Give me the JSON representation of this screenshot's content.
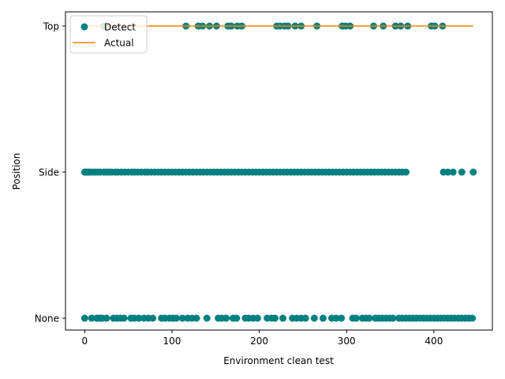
{
  "chart_data": {
    "type": "scatter",
    "xlabel": "Environment clean test",
    "ylabel": "Position",
    "xlim": [
      -22,
      467
    ],
    "x_ticks": [
      0,
      100,
      200,
      300,
      400
    ],
    "y_categories": [
      "None",
      "Side",
      "Top"
    ],
    "legend_position": "upper-left",
    "grid": false,
    "series": [
      {
        "name": "Detect",
        "kind": "scatter",
        "color": "#008080",
        "points": [
          {
            "x": 22,
            "y": "Top"
          },
          {
            "x": 116,
            "y": "Top"
          },
          {
            "x": 130,
            "y": "Top"
          },
          {
            "x": 135,
            "y": "Top"
          },
          {
            "x": 143,
            "y": "Top"
          },
          {
            "x": 151,
            "y": "Top"
          },
          {
            "x": 164,
            "y": "Top"
          },
          {
            "x": 168,
            "y": "Top"
          },
          {
            "x": 175,
            "y": "Top"
          },
          {
            "x": 180,
            "y": "Top"
          },
          {
            "x": 220,
            "y": "Top"
          },
          {
            "x": 224,
            "y": "Top"
          },
          {
            "x": 229,
            "y": "Top"
          },
          {
            "x": 233,
            "y": "Top"
          },
          {
            "x": 241,
            "y": "Top"
          },
          {
            "x": 248,
            "y": "Top"
          },
          {
            "x": 266,
            "y": "Top"
          },
          {
            "x": 295,
            "y": "Top"
          },
          {
            "x": 299,
            "y": "Top"
          },
          {
            "x": 304,
            "y": "Top"
          },
          {
            "x": 331,
            "y": "Top"
          },
          {
            "x": 342,
            "y": "Top"
          },
          {
            "x": 356,
            "y": "Top"
          },
          {
            "x": 362,
            "y": "Top"
          },
          {
            "x": 370,
            "y": "Top"
          },
          {
            "x": 397,
            "y": "Top"
          },
          {
            "x": 401,
            "y": "Top"
          },
          {
            "x": 410,
            "y": "Top"
          },
          {
            "x": 0,
            "y": "Side"
          },
          {
            "x": 2,
            "y": "Side"
          },
          {
            "x": 4,
            "y": "Side"
          },
          {
            "x": 6,
            "y": "Side"
          },
          {
            "x": 9,
            "y": "Side"
          },
          {
            "x": 12,
            "y": "Side"
          },
          {
            "x": 15,
            "y": "Side"
          },
          {
            "x": 18,
            "y": "Side"
          },
          {
            "x": 22,
            "y": "Side"
          },
          {
            "x": 25,
            "y": "Side"
          },
          {
            "x": 28,
            "y": "Side"
          },
          {
            "x": 31,
            "y": "Side"
          },
          {
            "x": 35,
            "y": "Side"
          },
          {
            "x": 38,
            "y": "Side"
          },
          {
            "x": 42,
            "y": "Side"
          },
          {
            "x": 46,
            "y": "Side"
          },
          {
            "x": 50,
            "y": "Side"
          },
          {
            "x": 54,
            "y": "Side"
          },
          {
            "x": 57,
            "y": "Side"
          },
          {
            "x": 61,
            "y": "Side"
          },
          {
            "x": 65,
            "y": "Side"
          },
          {
            "x": 69,
            "y": "Side"
          },
          {
            "x": 72,
            "y": "Side"
          },
          {
            "x": 76,
            "y": "Side"
          },
          {
            "x": 80,
            "y": "Side"
          },
          {
            "x": 84,
            "y": "Side"
          },
          {
            "x": 88,
            "y": "Side"
          },
          {
            "x": 92,
            "y": "Side"
          },
          {
            "x": 96,
            "y": "Side"
          },
          {
            "x": 100,
            "y": "Side"
          },
          {
            "x": 104,
            "y": "Side"
          },
          {
            "x": 108,
            "y": "Side"
          },
          {
            "x": 112,
            "y": "Side"
          },
          {
            "x": 116,
            "y": "Side"
          },
          {
            "x": 120,
            "y": "Side"
          },
          {
            "x": 124,
            "y": "Side"
          },
          {
            "x": 128,
            "y": "Side"
          },
          {
            "x": 132,
            "y": "Side"
          },
          {
            "x": 136,
            "y": "Side"
          },
          {
            "x": 140,
            "y": "Side"
          },
          {
            "x": 144,
            "y": "Side"
          },
          {
            "x": 148,
            "y": "Side"
          },
          {
            "x": 152,
            "y": "Side"
          },
          {
            "x": 156,
            "y": "Side"
          },
          {
            "x": 160,
            "y": "Side"
          },
          {
            "x": 164,
            "y": "Side"
          },
          {
            "x": 168,
            "y": "Side"
          },
          {
            "x": 172,
            "y": "Side"
          },
          {
            "x": 176,
            "y": "Side"
          },
          {
            "x": 180,
            "y": "Side"
          },
          {
            "x": 184,
            "y": "Side"
          },
          {
            "x": 188,
            "y": "Side"
          },
          {
            "x": 192,
            "y": "Side"
          },
          {
            "x": 196,
            "y": "Side"
          },
          {
            "x": 200,
            "y": "Side"
          },
          {
            "x": 204,
            "y": "Side"
          },
          {
            "x": 208,
            "y": "Side"
          },
          {
            "x": 212,
            "y": "Side"
          },
          {
            "x": 216,
            "y": "Side"
          },
          {
            "x": 220,
            "y": "Side"
          },
          {
            "x": 224,
            "y": "Side"
          },
          {
            "x": 228,
            "y": "Side"
          },
          {
            "x": 232,
            "y": "Side"
          },
          {
            "x": 236,
            "y": "Side"
          },
          {
            "x": 240,
            "y": "Side"
          },
          {
            "x": 244,
            "y": "Side"
          },
          {
            "x": 248,
            "y": "Side"
          },
          {
            "x": 252,
            "y": "Side"
          },
          {
            "x": 256,
            "y": "Side"
          },
          {
            "x": 260,
            "y": "Side"
          },
          {
            "x": 264,
            "y": "Side"
          },
          {
            "x": 268,
            "y": "Side"
          },
          {
            "x": 272,
            "y": "Side"
          },
          {
            "x": 276,
            "y": "Side"
          },
          {
            "x": 280,
            "y": "Side"
          },
          {
            "x": 284,
            "y": "Side"
          },
          {
            "x": 288,
            "y": "Side"
          },
          {
            "x": 292,
            "y": "Side"
          },
          {
            "x": 296,
            "y": "Side"
          },
          {
            "x": 300,
            "y": "Side"
          },
          {
            "x": 304,
            "y": "Side"
          },
          {
            "x": 308,
            "y": "Side"
          },
          {
            "x": 312,
            "y": "Side"
          },
          {
            "x": 316,
            "y": "Side"
          },
          {
            "x": 320,
            "y": "Side"
          },
          {
            "x": 324,
            "y": "Side"
          },
          {
            "x": 328,
            "y": "Side"
          },
          {
            "x": 332,
            "y": "Side"
          },
          {
            "x": 336,
            "y": "Side"
          },
          {
            "x": 340,
            "y": "Side"
          },
          {
            "x": 344,
            "y": "Side"
          },
          {
            "x": 348,
            "y": "Side"
          },
          {
            "x": 352,
            "y": "Side"
          },
          {
            "x": 356,
            "y": "Side"
          },
          {
            "x": 360,
            "y": "Side"
          },
          {
            "x": 364,
            "y": "Side"
          },
          {
            "x": 368,
            "y": "Side"
          },
          {
            "x": 411,
            "y": "Side"
          },
          {
            "x": 416,
            "y": "Side"
          },
          {
            "x": 422,
            "y": "Side"
          },
          {
            "x": 432,
            "y": "Side"
          },
          {
            "x": 445,
            "y": "Side"
          },
          {
            "x": 0,
            "y": "None"
          },
          {
            "x": 8,
            "y": "None"
          },
          {
            "x": 14,
            "y": "None"
          },
          {
            "x": 17,
            "y": "None"
          },
          {
            "x": 20,
            "y": "None"
          },
          {
            "x": 25,
            "y": "None"
          },
          {
            "x": 33,
            "y": "None"
          },
          {
            "x": 37,
            "y": "None"
          },
          {
            "x": 41,
            "y": "None"
          },
          {
            "x": 45,
            "y": "None"
          },
          {
            "x": 53,
            "y": "None"
          },
          {
            "x": 57,
            "y": "None"
          },
          {
            "x": 62,
            "y": "None"
          },
          {
            "x": 68,
            "y": "None"
          },
          {
            "x": 73,
            "y": "None"
          },
          {
            "x": 78,
            "y": "None"
          },
          {
            "x": 88,
            "y": "None"
          },
          {
            "x": 92,
            "y": "None"
          },
          {
            "x": 97,
            "y": "None"
          },
          {
            "x": 101,
            "y": "None"
          },
          {
            "x": 105,
            "y": "None"
          },
          {
            "x": 112,
            "y": "None"
          },
          {
            "x": 118,
            "y": "None"
          },
          {
            "x": 123,
            "y": "None"
          },
          {
            "x": 128,
            "y": "None"
          },
          {
            "x": 140,
            "y": "None"
          },
          {
            "x": 153,
            "y": "None"
          },
          {
            "x": 157,
            "y": "None"
          },
          {
            "x": 162,
            "y": "None"
          },
          {
            "x": 170,
            "y": "None"
          },
          {
            "x": 174,
            "y": "None"
          },
          {
            "x": 184,
            "y": "None"
          },
          {
            "x": 188,
            "y": "None"
          },
          {
            "x": 193,
            "y": "None"
          },
          {
            "x": 198,
            "y": "None"
          },
          {
            "x": 209,
            "y": "None"
          },
          {
            "x": 214,
            "y": "None"
          },
          {
            "x": 218,
            "y": "None"
          },
          {
            "x": 227,
            "y": "None"
          },
          {
            "x": 238,
            "y": "None"
          },
          {
            "x": 243,
            "y": "None"
          },
          {
            "x": 248,
            "y": "None"
          },
          {
            "x": 253,
            "y": "None"
          },
          {
            "x": 263,
            "y": "None"
          },
          {
            "x": 273,
            "y": "None"
          },
          {
            "x": 283,
            "y": "None"
          },
          {
            "x": 288,
            "y": "None"
          },
          {
            "x": 294,
            "y": "None"
          },
          {
            "x": 307,
            "y": "None"
          },
          {
            "x": 311,
            "y": "None"
          },
          {
            "x": 318,
            "y": "None"
          },
          {
            "x": 322,
            "y": "None"
          },
          {
            "x": 326,
            "y": "None"
          },
          {
            "x": 333,
            "y": "None"
          },
          {
            "x": 337,
            "y": "None"
          },
          {
            "x": 341,
            "y": "None"
          },
          {
            "x": 345,
            "y": "None"
          },
          {
            "x": 349,
            "y": "None"
          },
          {
            "x": 353,
            "y": "None"
          },
          {
            "x": 360,
            "y": "None"
          },
          {
            "x": 364,
            "y": "None"
          },
          {
            "x": 368,
            "y": "None"
          },
          {
            "x": 372,
            "y": "None"
          },
          {
            "x": 376,
            "y": "None"
          },
          {
            "x": 380,
            "y": "None"
          },
          {
            "x": 384,
            "y": "None"
          },
          {
            "x": 388,
            "y": "None"
          },
          {
            "x": 392,
            "y": "None"
          },
          {
            "x": 396,
            "y": "None"
          },
          {
            "x": 400,
            "y": "None"
          },
          {
            "x": 404,
            "y": "None"
          },
          {
            "x": 408,
            "y": "None"
          },
          {
            "x": 412,
            "y": "None"
          },
          {
            "x": 416,
            "y": "None"
          },
          {
            "x": 420,
            "y": "None"
          },
          {
            "x": 424,
            "y": "None"
          },
          {
            "x": 428,
            "y": "None"
          },
          {
            "x": 432,
            "y": "None"
          },
          {
            "x": 436,
            "y": "None"
          },
          {
            "x": 440,
            "y": "None"
          },
          {
            "x": 444,
            "y": "None"
          }
        ]
      },
      {
        "name": "Actual",
        "kind": "line",
        "color": "#ff8000",
        "points": [
          {
            "x": 0,
            "y": "Top"
          },
          {
            "x": 445,
            "y": "Top"
          }
        ]
      }
    ]
  }
}
